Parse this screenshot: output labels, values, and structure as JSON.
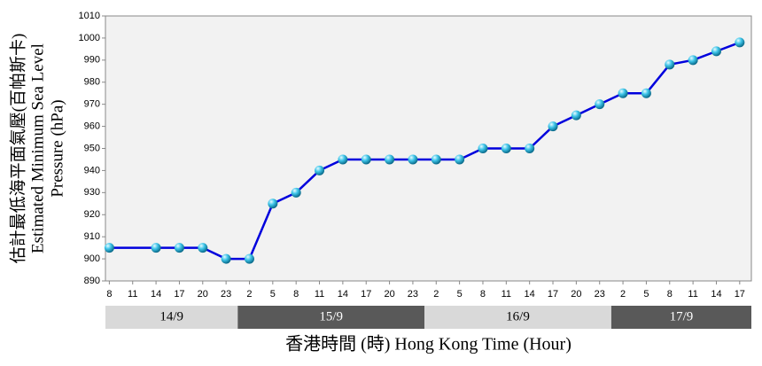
{
  "chart_data": {
    "type": "line",
    "y_label": [
      "估計最低海平面氣壓(百帕斯卡)",
      "Estimated Minimum Sea Level",
      "Pressure (hPa)"
    ],
    "x_label": "香港時間  (時) Hong Kong Time (Hour)",
    "date_bands": [
      "14/9",
      "15/9",
      "16/9",
      "17/9"
    ],
    "band_colors": [
      "#d9d9d9",
      "#595959"
    ],
    "x": [
      0,
      6,
      9,
      12,
      15,
      18,
      21,
      24,
      27,
      30,
      33,
      36,
      39,
      42,
      45,
      48,
      51,
      54,
      57,
      60,
      63,
      66,
      69,
      72,
      75,
      78,
      81
    ],
    "series": [
      {
        "color": "#0000dd",
        "marker_color": "#22b8e0",
        "values": [
          905,
          905,
          905,
          905,
          900,
          900,
          925,
          930,
          940,
          945,
          945,
          945,
          945,
          945,
          945,
          950,
          950,
          950,
          960,
          965,
          970,
          975,
          975,
          988,
          990,
          994,
          998
        ]
      }
    ],
    "xlim": [
      -0.5,
      82.5
    ],
    "xticks": [
      {
        "value": 0,
        "label": "8"
      },
      {
        "value": 3,
        "label": "11"
      },
      {
        "value": 6,
        "label": "14"
      },
      {
        "value": 9,
        "label": "17"
      },
      {
        "value": 12,
        "label": "20"
      },
      {
        "value": 15,
        "label": "23"
      },
      {
        "value": 18,
        "label": "2"
      },
      {
        "value": 21,
        "label": "5"
      },
      {
        "value": 24,
        "label": "8"
      },
      {
        "value": 27,
        "label": "11"
      },
      {
        "value": 30,
        "label": "14"
      },
      {
        "value": 33,
        "label": "17"
      },
      {
        "value": 36,
        "label": "20"
      },
      {
        "value": 39,
        "label": "23"
      },
      {
        "value": 42,
        "label": "2"
      },
      {
        "value": 45,
        "label": "5"
      },
      {
        "value": 48,
        "label": "8"
      },
      {
        "value": 51,
        "label": "11"
      },
      {
        "value": 54,
        "label": "14"
      },
      {
        "value": 57,
        "label": "17"
      },
      {
        "value": 60,
        "label": "20"
      },
      {
        "value": 63,
        "label": "23"
      },
      {
        "value": 66,
        "label": "2"
      },
      {
        "value": 69,
        "label": "5"
      },
      {
        "value": 72,
        "label": "8"
      },
      {
        "value": 75,
        "label": "11"
      },
      {
        "value": 78,
        "label": "14"
      },
      {
        "value": 81,
        "label": "17"
      }
    ],
    "ylim": [
      890,
      1010
    ],
    "yticks": [
      890,
      900,
      910,
      920,
      930,
      940,
      950,
      960,
      970,
      980,
      990,
      1000,
      1010
    ],
    "grid": false
  }
}
